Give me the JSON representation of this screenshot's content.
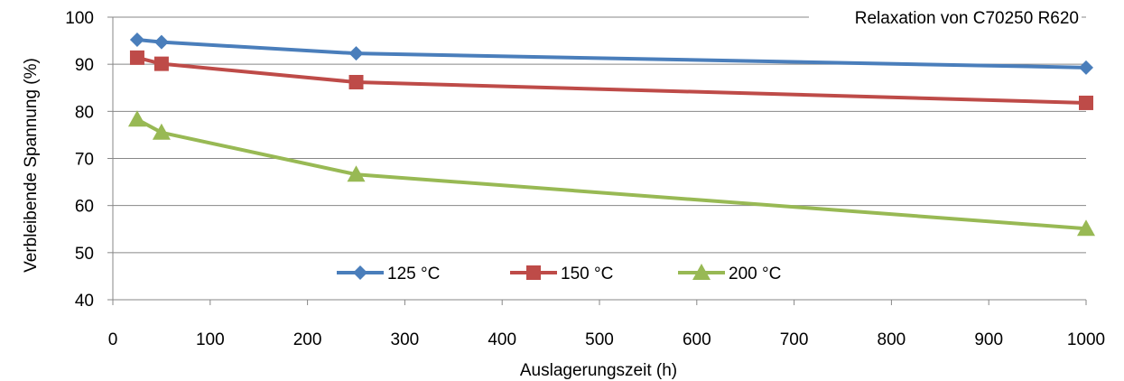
{
  "chart_data": {
    "type": "line",
    "title": "Relaxation von C70250 R620",
    "xlabel": "Auslagerungszeit (h)",
    "ylabel": "Verbleibende Spannung (%)",
    "xlim": [
      0,
      1000
    ],
    "ylim": [
      40,
      100
    ],
    "x_ticks": [
      0,
      100,
      200,
      300,
      400,
      500,
      600,
      700,
      800,
      900,
      1000
    ],
    "y_ticks": [
      40,
      50,
      60,
      70,
      80,
      90,
      100
    ],
    "grid": "horizontal",
    "legend_position": "bottom-center",
    "x": [
      25,
      50,
      250,
      1000
    ],
    "series": [
      {
        "name": "125 °C",
        "values": [
          95.2,
          94.7,
          92.3,
          89.3
        ],
        "color": "#4A7EBB",
        "marker": "diamond"
      },
      {
        "name": "150 °C",
        "values": [
          91.4,
          90.1,
          86.2,
          81.8
        ],
        "color": "#BE4B48",
        "marker": "square"
      },
      {
        "name": "200 °C",
        "values": [
          78.3,
          75.5,
          66.6,
          55.1
        ],
        "color": "#98B954",
        "marker": "triangle"
      }
    ]
  }
}
